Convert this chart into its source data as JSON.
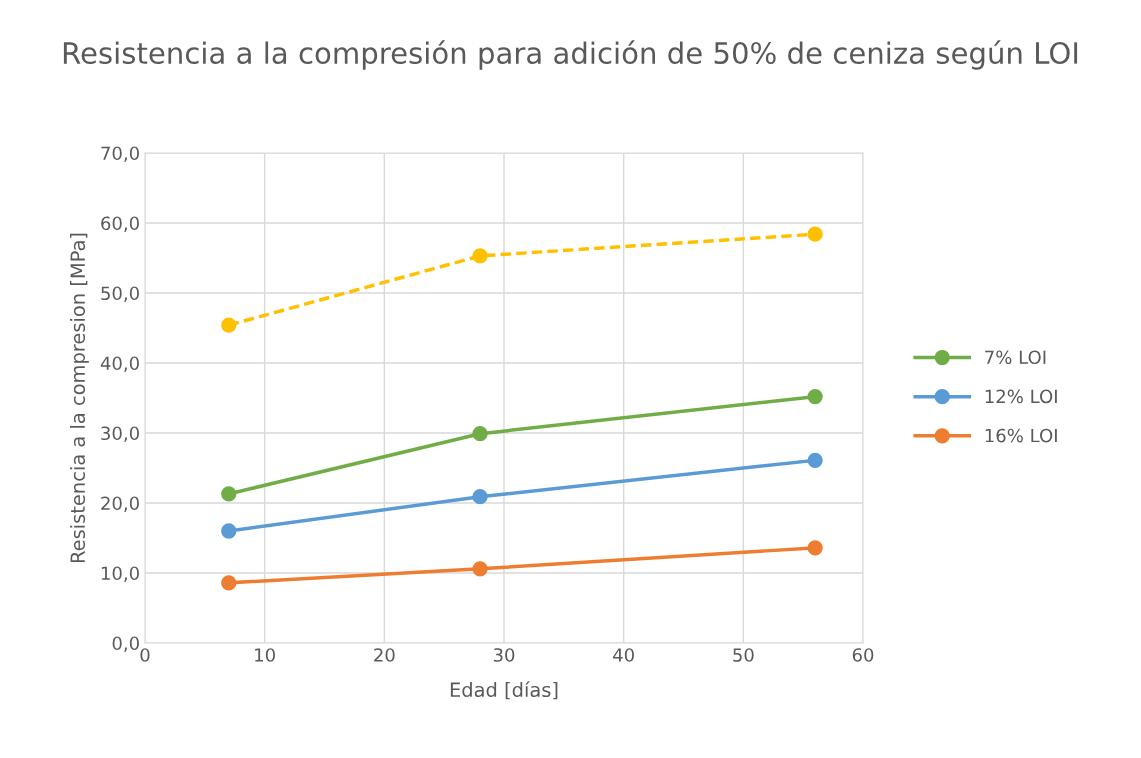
{
  "chart_data": {
    "type": "line",
    "title": "Resistencia a la compresión para adición de 50% de ceniza según LOI",
    "xlabel": "Edad [días]",
    "ylabel": "Resistencia a la compresion [MPa]",
    "x": [
      7,
      28,
      56
    ],
    "series": [
      {
        "name": "7% LOI",
        "color": "#70ad47",
        "values": [
          21.3,
          29.9,
          35.2
        ],
        "line_style": "solid"
      },
      {
        "name": "12% LOI",
        "color": "#5b9bd5",
        "values": [
          16.0,
          20.9,
          26.1
        ],
        "line_style": "solid"
      },
      {
        "name": "16% LOI",
        "color": "#ed7d31",
        "values": [
          8.6,
          10.6,
          13.6
        ],
        "line_style": "solid"
      },
      {
        "color": "#ffc000",
        "values": [
          45.4,
          55.3,
          58.4
        ],
        "line_style": "dashed"
      }
    ],
    "xlim": [
      0,
      60
    ],
    "xticks": [
      0,
      10,
      20,
      30,
      40,
      50,
      60
    ],
    "ylim": [
      0,
      70
    ],
    "yticks": [
      {
        "value": 0,
        "label": "0,0"
      },
      {
        "value": 10,
        "label": "10,0"
      },
      {
        "value": 20,
        "label": "20,0"
      },
      {
        "value": 30,
        "label": "30,0"
      },
      {
        "value": 40,
        "label": "40,0"
      },
      {
        "value": 50,
        "label": "50,0"
      },
      {
        "value": 60,
        "label": "60,0"
      },
      {
        "value": 70,
        "label": "70,0"
      }
    ],
    "grid": true,
    "legend": "right",
    "marker": "circle"
  }
}
